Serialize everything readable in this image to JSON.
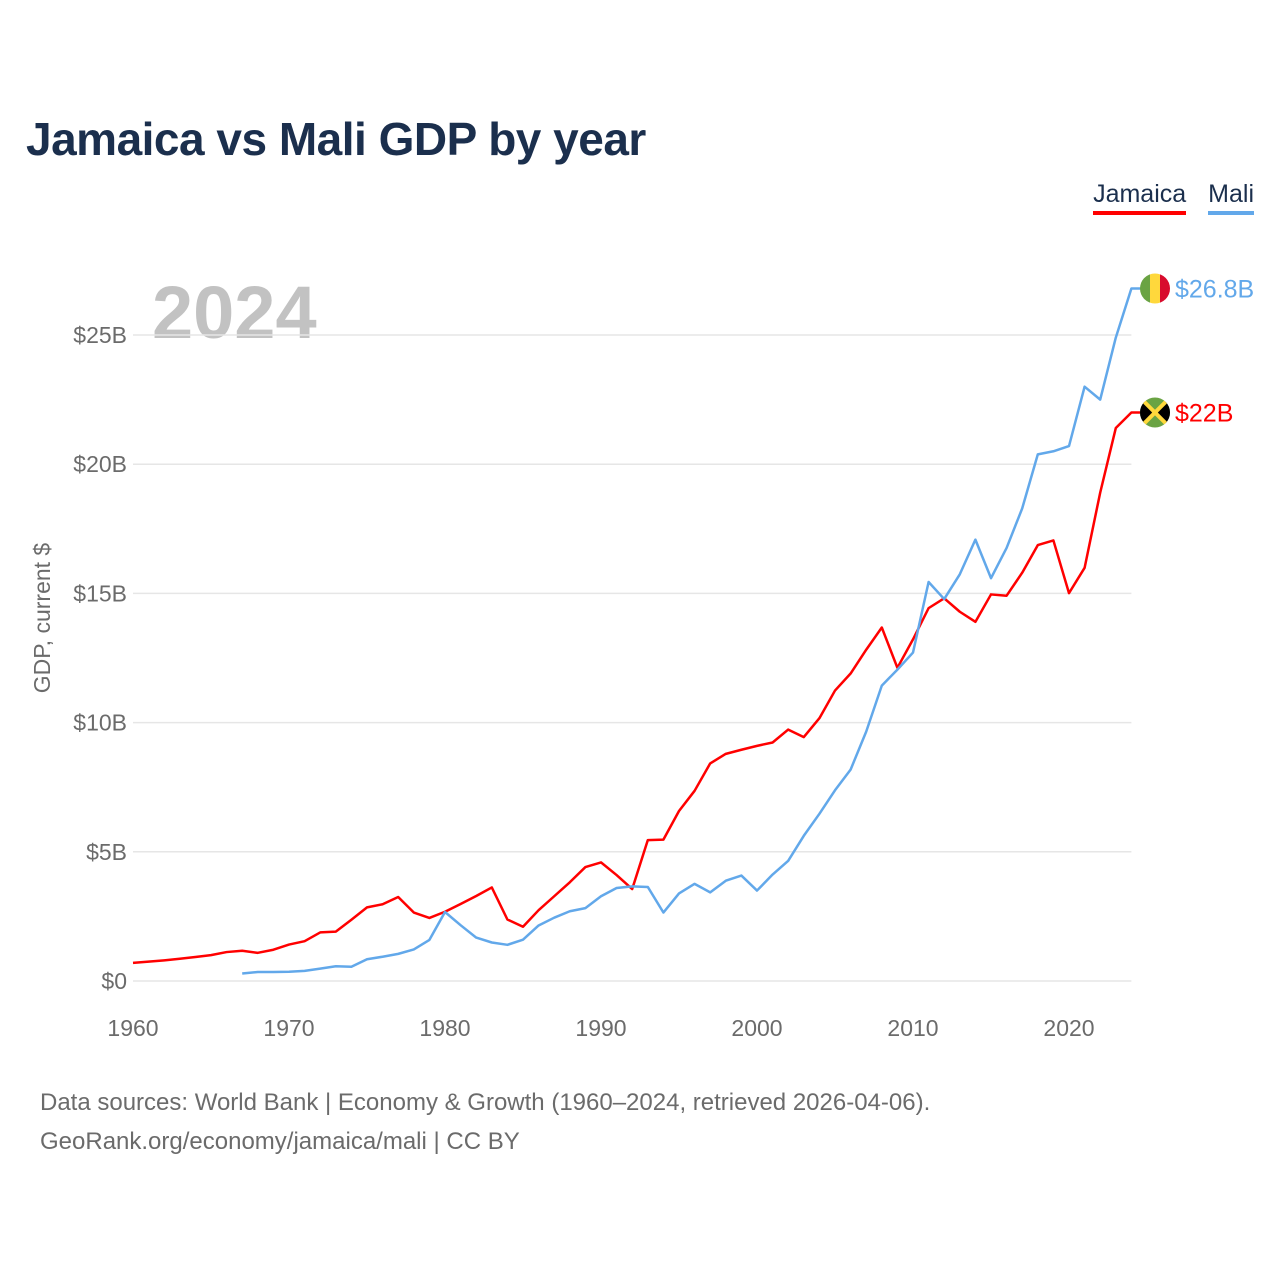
{
  "title": "Jamaica vs Mali GDP by year",
  "year_watermark": "2024",
  "legend": [
    {
      "label": "Jamaica",
      "color": "#ff0000"
    },
    {
      "label": "Mali",
      "color": "#62a8ea"
    }
  ],
  "footer": {
    "line1": "Data sources: World Bank | Economy & Growth (1960–2024, retrieved 2026-04-06).",
    "line2": "GeoRank.org/economy/jamaica/mali | CC BY"
  },
  "chart_data": {
    "type": "line",
    "title": "Jamaica vs Mali GDP by year",
    "xlabel": "",
    "ylabel": "GDP, current $",
    "xlim": [
      1960,
      2024
    ],
    "ylim": [
      0,
      27
    ],
    "x_ticks": [
      1960,
      1970,
      1980,
      1990,
      2000,
      2010,
      2020
    ],
    "y_ticks": [
      0,
      5,
      10,
      15,
      20,
      25
    ],
    "y_tick_labels": [
      "$0",
      "$5B",
      "$10B",
      "$15B",
      "$20B",
      "$25B"
    ],
    "grid": "horizontal",
    "legend_position": "top-right",
    "series": [
      {
        "name": "Jamaica",
        "color": "#ff0000",
        "end_label": "$22B",
        "flag": "jamaica-flag",
        "start_year": 1960,
        "values": [
          0.7,
          0.75,
          0.8,
          0.86,
          0.93,
          1.0,
          1.12,
          1.17,
          1.09,
          1.21,
          1.41,
          1.54,
          1.88,
          1.91,
          2.37,
          2.85,
          2.97,
          3.25,
          2.65,
          2.44,
          2.68,
          2.98,
          3.29,
          3.62,
          2.38,
          2.1,
          2.74,
          3.28,
          3.82,
          4.41,
          4.59,
          4.1,
          3.56,
          5.45,
          5.47,
          6.58,
          7.36,
          8.42,
          8.79,
          8.95,
          9.1,
          9.23,
          9.73,
          9.44,
          10.17,
          11.24,
          11.9,
          12.82,
          13.68,
          12.12,
          13.22,
          14.43,
          14.81,
          14.29,
          13.9,
          14.96,
          14.91,
          15.8,
          16.87,
          17.05,
          15.01,
          15.99,
          18.9,
          21.4,
          22.0
        ]
      },
      {
        "name": "Mali",
        "color": "#62a8ea",
        "end_label": "$26.8B",
        "flag": "mali-flag",
        "start_year": 1967,
        "values": [
          0.29,
          0.35,
          0.35,
          0.36,
          0.39,
          0.48,
          0.57,
          0.55,
          0.84,
          0.94,
          1.05,
          1.22,
          1.59,
          2.67,
          2.16,
          1.68,
          1.49,
          1.4,
          1.6,
          2.15,
          2.45,
          2.7,
          2.82,
          3.28,
          3.6,
          3.66,
          3.64,
          2.65,
          3.39,
          3.76,
          3.43,
          3.88,
          4.08,
          3.5,
          4.12,
          4.65,
          5.62,
          6.47,
          7.38,
          8.18,
          9.65,
          11.43,
          12.05,
          12.71,
          15.44,
          14.78,
          15.74,
          17.08,
          15.59,
          16.76,
          18.29,
          20.38,
          20.5,
          20.7,
          23.0,
          22.5,
          24.9,
          26.8
        ]
      }
    ]
  }
}
